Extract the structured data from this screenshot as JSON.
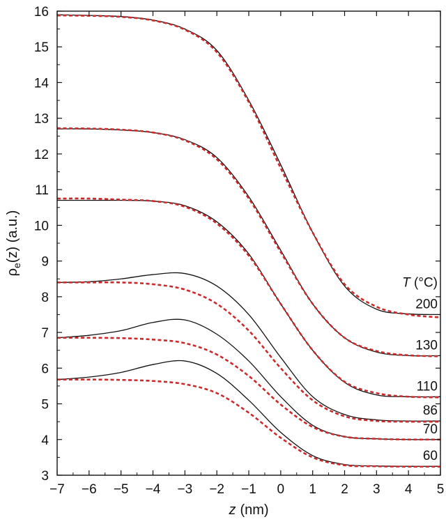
{
  "chart_data": {
    "type": "line",
    "xlabel_var": "z",
    "xlabel_unit": "(nm)",
    "ylabel_main": "ρ",
    "ylabel_sub": "e",
    "ylabel_rest": "(z) (a.u.)",
    "xlim": [
      -7,
      5
    ],
    "ylim": [
      3,
      16
    ],
    "x_ticks": [
      -7,
      -6,
      -5,
      -4,
      -3,
      -2,
      -1,
      0,
      1,
      2,
      3,
      4,
      5
    ],
    "x_tick_labels": [
      "−7",
      "−6",
      "−5",
      "−4",
      "−3",
      "−2",
      "−1",
      "0",
      "1",
      "2",
      "3",
      "4",
      "5"
    ],
    "y_ticks": [
      3,
      4,
      5,
      6,
      7,
      8,
      9,
      10,
      11,
      12,
      13,
      14,
      15,
      16
    ],
    "y_tick_labels": [
      "3",
      "4",
      "5",
      "6",
      "7",
      "8",
      "9",
      "10",
      "11",
      "12",
      "13",
      "14",
      "15",
      "16"
    ],
    "legend_title_var": "T",
    "legend_title_unit": " (°C)",
    "colors": {
      "solid": "#111111",
      "dashed": "#cc2a2a"
    },
    "series": [
      {
        "name": "200",
        "solid": {
          "x": [
            -7,
            -6,
            -5,
            -4,
            -3,
            -2,
            -1,
            0,
            1,
            2,
            3,
            4,
            5
          ],
          "y": [
            15.9,
            15.88,
            15.85,
            15.75,
            15.5,
            14.9,
            13.5,
            11.7,
            9.8,
            8.3,
            7.65,
            7.52,
            7.5
          ]
        },
        "dashed": {
          "x": [
            -7,
            -6,
            -5,
            -4,
            -3,
            -2,
            -1,
            0,
            1,
            2,
            3,
            4,
            5
          ],
          "y": [
            15.88,
            15.87,
            15.84,
            15.74,
            15.48,
            14.85,
            13.45,
            11.6,
            9.8,
            8.35,
            7.72,
            7.5,
            7.42
          ]
        }
      },
      {
        "name": "130",
        "solid": {
          "x": [
            -7,
            -6,
            -5,
            -4,
            -3,
            -2,
            -1,
            0,
            1,
            2,
            3,
            4,
            5
          ],
          "y": [
            12.7,
            12.7,
            12.67,
            12.6,
            12.4,
            11.9,
            10.8,
            9.3,
            7.8,
            6.85,
            6.45,
            6.35,
            6.35
          ]
        },
        "dashed": {
          "x": [
            -7,
            -6,
            -5,
            -4,
            -3,
            -2,
            -1,
            0,
            1,
            2,
            3,
            4,
            5
          ],
          "y": [
            12.72,
            12.71,
            12.68,
            12.6,
            12.38,
            11.85,
            10.75,
            9.25,
            7.8,
            6.85,
            6.48,
            6.36,
            6.33
          ]
        }
      },
      {
        "name": "110",
        "solid": {
          "x": [
            -7,
            -6,
            -5,
            -4,
            -3,
            -2,
            -1,
            0,
            1,
            2,
            3,
            4,
            5
          ],
          "y": [
            10.7,
            10.7,
            10.7,
            10.68,
            10.55,
            10.1,
            9.2,
            7.8,
            6.5,
            5.6,
            5.25,
            5.2,
            5.2
          ]
        },
        "dashed": {
          "x": [
            -7,
            -6,
            -5,
            -4,
            -3,
            -2,
            -1,
            0,
            1,
            2,
            3,
            4,
            5
          ],
          "y": [
            10.75,
            10.75,
            10.72,
            10.68,
            10.52,
            10.05,
            9.15,
            7.8,
            6.5,
            5.62,
            5.3,
            5.2,
            5.18
          ]
        }
      },
      {
        "name": "86",
        "solid": {
          "x": [
            -7,
            -6,
            -5,
            -4,
            -3,
            -2,
            -1,
            0,
            1,
            2,
            3,
            4,
            5
          ],
          "y": [
            8.4,
            8.42,
            8.5,
            8.62,
            8.65,
            8.3,
            7.5,
            6.3,
            5.2,
            4.7,
            4.55,
            4.52,
            4.52
          ]
        },
        "dashed": {
          "x": [
            -7,
            -6,
            -5,
            -4,
            -3,
            -2,
            -1,
            0,
            1,
            2,
            3,
            4,
            5
          ],
          "y": [
            8.4,
            8.4,
            8.4,
            8.35,
            8.2,
            7.8,
            7.05,
            6.0,
            5.1,
            4.65,
            4.52,
            4.5,
            4.5
          ]
        }
      },
      {
        "name": "70",
        "solid": {
          "x": [
            -7,
            -6,
            -5,
            -4,
            -3,
            -2,
            -1,
            0,
            1,
            2,
            3,
            4,
            5
          ],
          "y": [
            6.85,
            6.92,
            7.05,
            7.28,
            7.35,
            6.95,
            6.2,
            5.2,
            4.4,
            4.08,
            4.02,
            4.0,
            4.0
          ]
        },
        "dashed": {
          "x": [
            -7,
            -6,
            -5,
            -4,
            -3,
            -2,
            -1,
            0,
            1,
            2,
            3,
            4,
            5
          ],
          "y": [
            6.85,
            6.85,
            6.84,
            6.8,
            6.7,
            6.38,
            5.78,
            4.98,
            4.35,
            4.08,
            4.02,
            4.0,
            4.0
          ]
        }
      },
      {
        "name": "60",
        "solid": {
          "x": [
            -7,
            -6,
            -5,
            -4,
            -3,
            -2,
            -1,
            0,
            1,
            2,
            3,
            4,
            5
          ],
          "y": [
            5.68,
            5.75,
            5.88,
            6.1,
            6.2,
            5.85,
            5.1,
            4.2,
            3.55,
            3.3,
            3.26,
            3.25,
            3.25
          ]
        },
        "dashed": {
          "x": [
            -7,
            -6,
            -5,
            -4,
            -3,
            -2,
            -1,
            0,
            1,
            2,
            3,
            4,
            5
          ],
          "y": [
            5.68,
            5.68,
            5.67,
            5.64,
            5.55,
            5.3,
            4.75,
            4.05,
            3.5,
            3.28,
            3.25,
            3.24,
            3.24
          ]
        }
      }
    ]
  }
}
